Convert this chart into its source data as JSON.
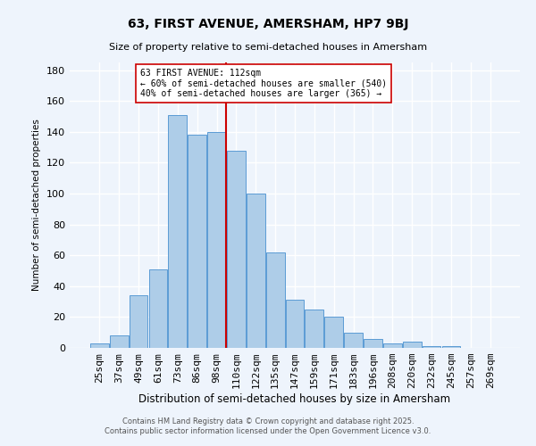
{
  "title1": "63, FIRST AVENUE, AMERSHAM, HP7 9BJ",
  "title2": "Size of property relative to semi-detached houses in Amersham",
  "xlabel": "Distribution of semi-detached houses by size in Amersham",
  "ylabel": "Number of semi-detached properties",
  "categories": [
    "25sqm",
    "37sqm",
    "49sqm",
    "61sqm",
    "73sqm",
    "86sqm",
    "98sqm",
    "110sqm",
    "122sqm",
    "135sqm",
    "147sqm",
    "159sqm",
    "171sqm",
    "183sqm",
    "196sqm",
    "208sqm",
    "220sqm",
    "232sqm",
    "245sqm",
    "257sqm",
    "269sqm"
  ],
  "values": [
    3,
    8,
    34,
    51,
    151,
    138,
    140,
    128,
    100,
    62,
    31,
    25,
    20,
    10,
    6,
    3,
    4,
    1,
    1,
    0,
    0
  ],
  "bar_color": "#aecde8",
  "bar_edge_color": "#5b9bd5",
  "background_color": "#eef4fc",
  "grid_color": "#ffffff",
  "vline_color": "#cc0000",
  "annotation_title": "63 FIRST AVENUE: 112sqm",
  "annotation_line1": "← 60% of semi-detached houses are smaller (540)",
  "annotation_line2": "40% of semi-detached houses are larger (365) →",
  "annotation_box_color": "#ffffff",
  "annotation_box_edge": "#cc0000",
  "footer1": "Contains HM Land Registry data © Crown copyright and database right 2025.",
  "footer2": "Contains public sector information licensed under the Open Government Licence v3.0.",
  "ylim": [
    0,
    185
  ],
  "yticks": [
    0,
    20,
    40,
    60,
    80,
    100,
    120,
    140,
    160,
    180
  ]
}
